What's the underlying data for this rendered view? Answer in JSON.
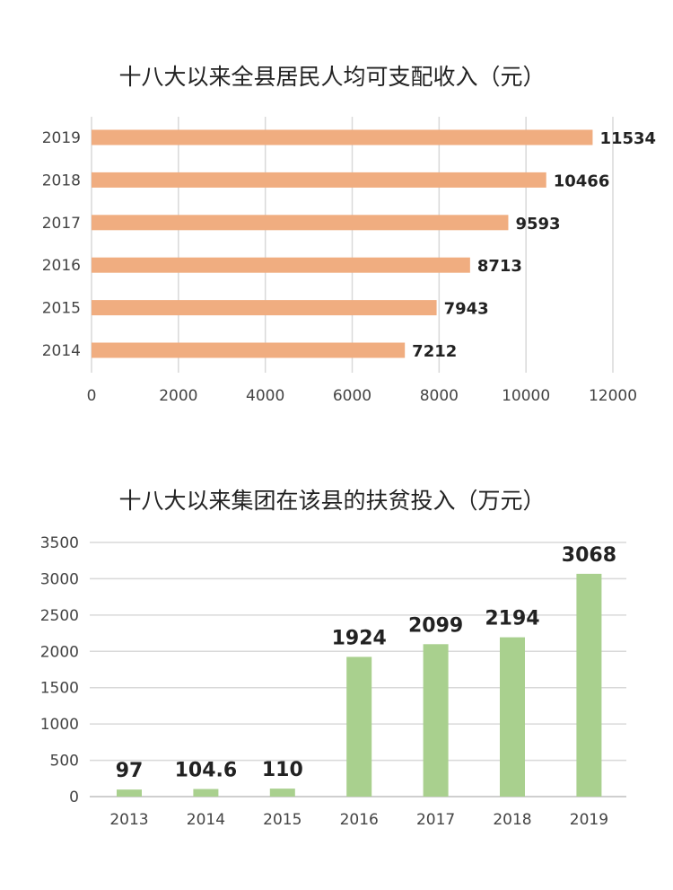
{
  "chart_data": [
    {
      "type": "bar",
      "orientation": "horizontal",
      "title": "十八大以来全县居民人均可支配收入（元）",
      "categories": [
        "2019",
        "2018",
        "2017",
        "2016",
        "2015",
        "2014"
      ],
      "values": [
        11534,
        10466,
        9593,
        8713,
        7943,
        7212
      ],
      "xlim": [
        0,
        12000
      ],
      "xticks": [
        0,
        2000,
        4000,
        6000,
        8000,
        10000,
        12000
      ],
      "grid": "vertical",
      "color": "#F0AD80"
    },
    {
      "type": "bar",
      "orientation": "vertical",
      "title": "十八大以来集团在该县的扶贫投入（万元）",
      "categories": [
        "2013",
        "2014",
        "2015",
        "2016",
        "2017",
        "2018",
        "2019"
      ],
      "values": [
        97,
        104.6,
        110,
        1924,
        2099,
        2194,
        3068
      ],
      "ylim": [
        0,
        3500
      ],
      "yticks": [
        0,
        500,
        1000,
        1500,
        2000,
        2500,
        3000,
        3500
      ],
      "grid": "horizontal",
      "color": "#A9D08E"
    }
  ]
}
